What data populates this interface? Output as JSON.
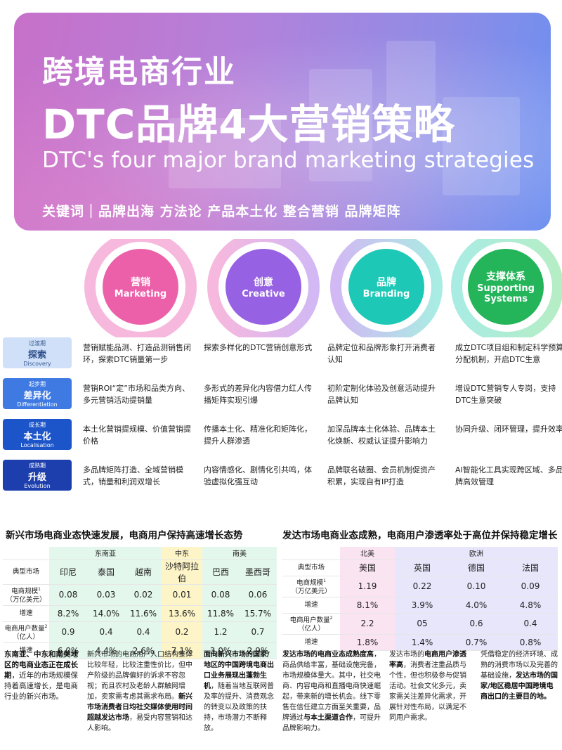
{
  "hero": {
    "title1": "跨境电商行业",
    "title2": "DTC品牌4大营销策略",
    "title3": "DTC's four major brand marketing strategies",
    "keywords": "关键词｜品牌出海 方法论 产品本土化 整合营销 品牌矩阵"
  },
  "chain": [
    {
      "cn": "营销",
      "en": "Marketing",
      "color": "#ec60a9"
    },
    {
      "cn": "创意",
      "en": "Creative",
      "color": "#9761e3"
    },
    {
      "cn": "品牌",
      "en": "Branding",
      "color": "#1ec8b6"
    },
    {
      "cn": "支撑体系",
      "en": "Supporting Systems",
      "en1": "Supporting",
      "en2": "Systems",
      "color": "#24b55a"
    }
  ],
  "phases": [
    {
      "tag": "过渡期",
      "name": "探索",
      "en": "Discovery",
      "cells": [
        "营销赋能品测、打造品测销售闭环，探索DTC销量第一步",
        "探索多样化的DTC营销创意形式",
        "品牌定位和品牌形象打开消费者认知",
        "成立DTC项目组和制定科学预算分配机制，开启DTC生意"
      ]
    },
    {
      "tag": "起步期",
      "name": "差异化",
      "en": "Differentiation",
      "cells": [
        "营销ROI“定”市场和品类方向、多元营销活动提销量",
        "多形式的差异化内容借力红人传播矩阵实现引爆",
        "初阶定制化体验及创意活动提升品牌认知",
        "增设DTC营销专人专岗，支持DTC生意突破"
      ]
    },
    {
      "tag": "成长期",
      "name": "本土化",
      "en": "Localisation",
      "cells": [
        "本土化营销提规模、价值营销提价格",
        "传播本土化、精准化和矩阵化，提升人群渗透",
        "加深品牌本土化体验、品牌本土化焕新、权威认证提升影响力",
        "协同升级、闭环管理，提升效率"
      ]
    },
    {
      "tag": "成熟期",
      "name": "升级",
      "en": "Evolution",
      "cells": [
        "多品牌矩阵打造、全域营销模式，销量和利润双增长",
        "内容情感化、剧情化引共鸣，体验虚拟化强互动",
        "品牌联名破圈、会员机制促资产积累，实现自有IP打造",
        "AI智能化工具实现跨区域、多品牌高效管理"
      ]
    }
  ],
  "left_section": {
    "title": "新兴市场电商业态快速发展，电商用户保持高速增长态势",
    "groups": [
      "东南亚",
      "中东",
      "南美"
    ],
    "row_market": "典型市场",
    "markets": [
      "印尼",
      "泰国",
      "越南",
      "沙特阿拉伯",
      "巴西",
      "墨西哥"
    ],
    "row_scale": "电商规模¹（万亿美元）",
    "row_scale_1": "电商规模",
    "row_scale_2": "（万亿美元）",
    "scale": [
      "0.08",
      "0.03",
      "0.02",
      "0.01",
      "0.08",
      "0.06"
    ],
    "row_growth": "增速",
    "scale_growth": [
      "8.2%",
      "14.0%",
      "11.6%",
      "13.6%",
      "11.8%",
      "15.7%"
    ],
    "row_users": "电商用户数量²（亿人）",
    "row_users_1": "电商用户数量",
    "row_users_2": "（亿人）",
    "users": [
      "0.9",
      "0.4",
      "0.4",
      "0.2",
      "1.2",
      "0.7"
    ],
    "users_growth": [
      "6.0%",
      "4.4%",
      "2.6%",
      "7.1%",
      "3.0%",
      "2.9%"
    ]
  },
  "right_section": {
    "title": "发达市场电商业态成熟，电商用户渗透率处于高位并保持稳定增长",
    "groups": [
      "北美",
      "欧洲"
    ],
    "row_market": "典型市场",
    "markets": [
      "美国",
      "英国",
      "德国",
      "法国"
    ],
    "row_scale_1": "电商规模",
    "row_scale_2": "（万亿美元）",
    "scale": [
      "1.19",
      "0.22",
      "0.10",
      "0.09"
    ],
    "row_growth": "增速",
    "scale_growth": [
      "8.1%",
      "3.9%",
      "4.0%",
      "4.8%"
    ],
    "row_users_1": "电商用户数量",
    "row_users_2": "（亿人）",
    "users": [
      "2.2",
      "05",
      "0.6",
      "0.4"
    ],
    "users_growth": [
      "1.8%",
      "1.4%",
      "0.7%",
      "0.8%"
    ]
  },
  "bottom": {
    "b1_bold": "东南亚、中东和南美地区的电商业态正在成长期",
    "b1_rest": "，近年的市场规模保持着高速增长，是电商行业的新兴市场。",
    "b2_a": "新兴市场的电商用户人口结构整体比较年轻，比较注重性价比，但中产阶级的品牌偏好的诉求不容忽视；而且农村及老龄人群触网增加，卖家需考虑其需求布局。",
    "b2_bold": "新兴市场消费者日均社交媒体使用时间超越发达市场",
    "b2_b": "，易受内容营销和达人影响。",
    "b3_bold": "面向新兴市场的国家/地区的中国跨境电商出口业务展现出蓬勃生机",
    "b3_rest": "，随着当地互联网普及率的提升、消费观念的转变以及政策的扶持，市场潜力不断释放。",
    "b4_bold1": "发达市场的电商业态成熟度高",
    "b4_a": "，商品供给丰富，基础设施完备，市场规模体量大。其中，社交电商、内容电商和直播电商快速崛起，带来新的增长机会。线下零售在信任建立方面至关重要，品牌通过",
    "b4_bold2": "与本土渠道合作",
    "b4_b": "，可提升品牌影响力。",
    "b5_a": "发达市场的",
    "b5_bold": "电商用户渗透率高",
    "b5_b": "，消费者注重品质与个性，但也积极参与促销活动。社会文化多元，卖家需关注差异化需求，开展针对性布局，以满足不同用户需求。",
    "b6_a": "凭借稳定的经济环境、成熟的消费市场以及完善的基础设施，",
    "b6_bold": "发达市场的国家/地区稳居中国跨境电商出口的主要目的地。"
  }
}
